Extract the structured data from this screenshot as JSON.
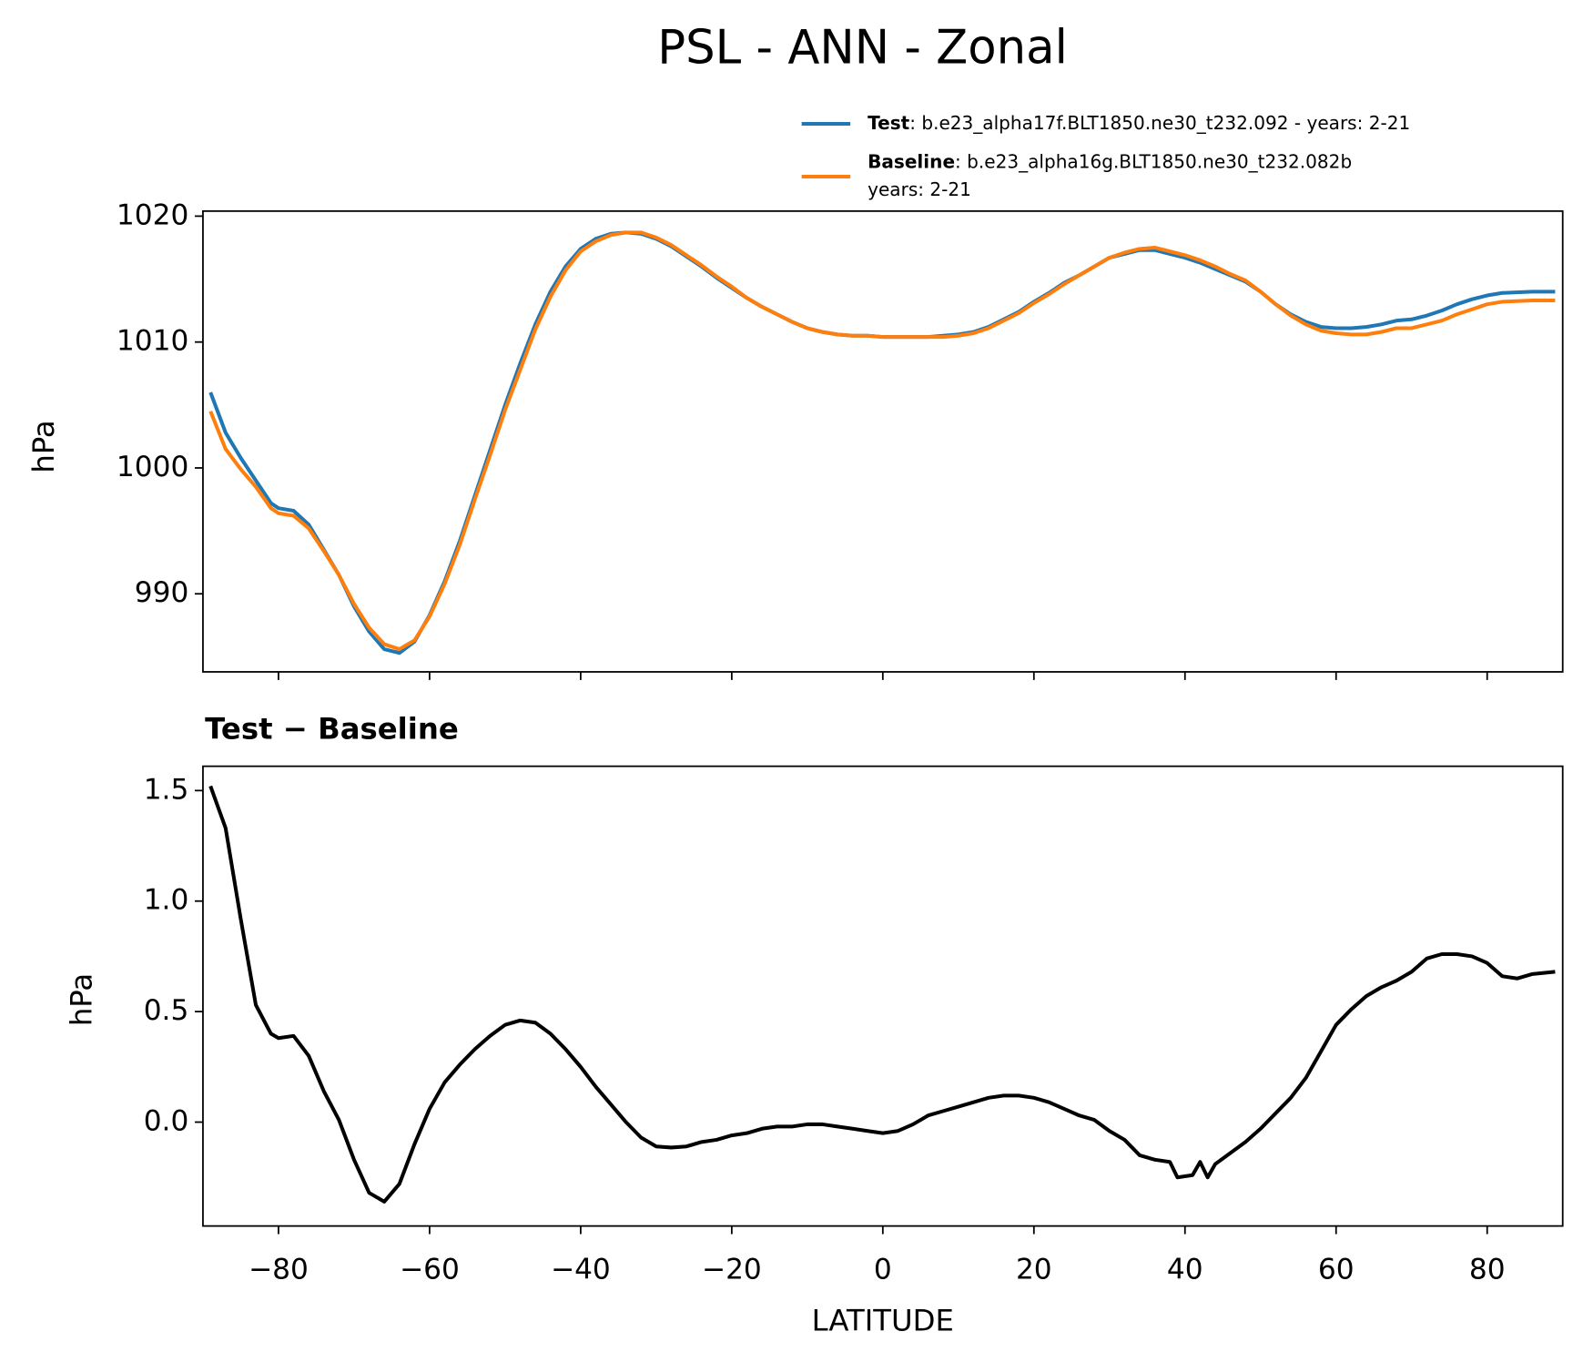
{
  "chart_data": [
    {
      "type": "line",
      "title": "PSL - ANN - Zonal",
      "ylabel": "hPa",
      "x": [
        -89,
        -87,
        -85,
        -83,
        -81,
        -80,
        -78,
        -76,
        -74,
        -72,
        -70,
        -68,
        -66,
        -64,
        -62,
        -60,
        -58,
        -56,
        -54,
        -52,
        -50,
        -48,
        -46,
        -44,
        -42,
        -40,
        -38,
        -36,
        -34,
        -32,
        -30,
        -28,
        -26,
        -24,
        -22,
        -20,
        -18,
        -16,
        -14,
        -12,
        -10,
        -8,
        -6,
        -4,
        -2,
        0,
        2,
        4,
        6,
        8,
        10,
        12,
        14,
        16,
        18,
        20,
        22,
        24,
        26,
        28,
        30,
        32,
        34,
        36,
        38,
        40,
        42,
        44,
        46,
        48,
        50,
        52,
        54,
        56,
        58,
        60,
        62,
        64,
        66,
        68,
        70,
        72,
        74,
        76,
        78,
        80,
        82,
        86,
        89
      ],
      "series": [
        {
          "name": "Test",
          "description": [
            ": b.e23_alpha17f.BLT1850.ne30_t232.092 - years: 2-21"
          ],
          "color": "#1f77b4",
          "values": [
            1006.0,
            1002.8,
            1000.8,
            999.0,
            997.2,
            996.8,
            996.6,
            995.5,
            993.5,
            991.5,
            989.0,
            987.0,
            985.6,
            985.3,
            986.2,
            988.3,
            991.0,
            994.2,
            997.8,
            1001.4,
            1005.0,
            1008.3,
            1011.4,
            1014.0,
            1016.0,
            1017.4,
            1018.2,
            1018.6,
            1018.7,
            1018.6,
            1018.2,
            1017.6,
            1016.8,
            1016.0,
            1015.1,
            1014.3,
            1013.5,
            1012.8,
            1012.2,
            1011.6,
            1011.1,
            1010.8,
            1010.6,
            1010.5,
            1010.5,
            1010.4,
            1010.4,
            1010.4,
            1010.4,
            1010.5,
            1010.6,
            1010.8,
            1011.2,
            1011.8,
            1012.4,
            1013.2,
            1013.9,
            1014.7,
            1015.3,
            1016.0,
            1016.7,
            1017.0,
            1017.3,
            1017.3,
            1017.0,
            1016.7,
            1016.3,
            1015.8,
            1015.3,
            1014.8,
            1014.0,
            1013.0,
            1012.2,
            1011.6,
            1011.2,
            1011.1,
            1011.1,
            1011.2,
            1011.4,
            1011.7,
            1011.8,
            1012.1,
            1012.5,
            1013.0,
            1013.4,
            1013.7,
            1013.9,
            1014.0,
            1014.0
          ]
        },
        {
          "name": "Baseline",
          "description": [
            ": b.e23_alpha16g.BLT1850.ne30_t232.082b",
            "years: 2-21"
          ],
          "color": "#ff7f0e",
          "values": [
            1004.5,
            1001.5,
            999.9,
            998.5,
            996.8,
            996.4,
            996.2,
            995.2,
            993.4,
            991.5,
            989.2,
            987.3,
            986.0,
            985.6,
            986.3,
            988.2,
            990.8,
            993.9,
            997.5,
            1001.0,
            1004.6,
            1007.8,
            1011.0,
            1013.6,
            1015.7,
            1017.2,
            1018.0,
            1018.5,
            1018.7,
            1018.7,
            1018.3,
            1017.7,
            1016.9,
            1016.1,
            1015.2,
            1014.4,
            1013.5,
            1012.8,
            1012.2,
            1011.6,
            1011.1,
            1010.8,
            1010.6,
            1010.5,
            1010.5,
            1010.4,
            1010.4,
            1010.4,
            1010.4,
            1010.4,
            1010.5,
            1010.7,
            1011.1,
            1011.7,
            1012.3,
            1013.1,
            1013.8,
            1014.6,
            1015.3,
            1016.0,
            1016.7,
            1017.1,
            1017.4,
            1017.5,
            1017.2,
            1016.9,
            1016.5,
            1016.0,
            1015.4,
            1014.9,
            1014.0,
            1013.0,
            1012.1,
            1011.4,
            1010.9,
            1010.7,
            1010.6,
            1010.6,
            1010.8,
            1011.1,
            1011.1,
            1011.4,
            1011.7,
            1012.2,
            1012.6,
            1013.0,
            1013.2,
            1013.3,
            1013.3
          ]
        }
      ],
      "xlim": [
        -90,
        90
      ],
      "xticks": [
        -80,
        -60,
        -40,
        -20,
        0,
        20,
        40,
        60,
        80
      ],
      "ylim": [
        983.8,
        1020.4
      ],
      "yticks": [
        990,
        1000,
        1010,
        1020
      ]
    },
    {
      "type": "line",
      "title": "Test − Baseline",
      "xlabel": "LATITUDE",
      "ylabel": "hPa",
      "x": [
        -89,
        -87,
        -85,
        -83,
        -81,
        -80,
        -78,
        -76,
        -74,
        -72,
        -70,
        -68,
        -66,
        -64,
        -62,
        -60,
        -58,
        -56,
        -54,
        -52,
        -50,
        -48,
        -46,
        -44,
        -42,
        -40,
        -38,
        -36,
        -34,
        -32,
        -30,
        -28,
        -26,
        -24,
        -22,
        -20,
        -18,
        -16,
        -14,
        -12,
        -10,
        -8,
        -6,
        -4,
        -2,
        0,
        2,
        4,
        6,
        8,
        10,
        12,
        14,
        16,
        18,
        20,
        22,
        24,
        26,
        28,
        30,
        32,
        34,
        36,
        38,
        39,
        41,
        42,
        43,
        44,
        46,
        48,
        50,
        52,
        54,
        56,
        58,
        60,
        62,
        64,
        66,
        68,
        70,
        72,
        74,
        76,
        78,
        80,
        82,
        84,
        86,
        89
      ],
      "series": [
        {
          "color": "#000000",
          "values": [
            1.52,
            1.33,
            0.92,
            0.53,
            0.4,
            0.38,
            0.39,
            0.3,
            0.14,
            0.01,
            -0.17,
            -0.32,
            -0.36,
            -0.28,
            -0.1,
            0.06,
            0.18,
            0.26,
            0.33,
            0.39,
            0.44,
            0.46,
            0.45,
            0.4,
            0.33,
            0.25,
            0.16,
            0.08,
            0.0,
            -0.07,
            -0.11,
            -0.115,
            -0.11,
            -0.09,
            -0.08,
            -0.06,
            -0.05,
            -0.03,
            -0.02,
            -0.02,
            -0.01,
            -0.01,
            -0.02,
            -0.03,
            -0.04,
            -0.05,
            -0.04,
            -0.01,
            0.03,
            0.05,
            0.07,
            0.09,
            0.11,
            0.12,
            0.12,
            0.11,
            0.09,
            0.06,
            0.03,
            0.01,
            -0.04,
            -0.08,
            -0.15,
            -0.17,
            -0.18,
            -0.25,
            -0.24,
            -0.18,
            -0.25,
            -0.19,
            -0.14,
            -0.09,
            -0.03,
            0.04,
            0.11,
            0.2,
            0.32,
            0.44,
            0.51,
            0.57,
            0.61,
            0.64,
            0.68,
            0.74,
            0.76,
            0.76,
            0.75,
            0.72,
            0.66,
            0.65,
            0.67,
            0.68
          ]
        }
      ],
      "xlim": [
        -90,
        90
      ],
      "xticks": [
        {
          "value": -80,
          "label": "−80"
        },
        {
          "value": -60,
          "label": "−60"
        },
        {
          "value": -40,
          "label": "−40"
        },
        {
          "value": -20,
          "label": "−20"
        },
        0,
        20,
        40,
        60,
        80
      ],
      "ylim": [
        -0.47,
        1.61
      ],
      "yticks": [
        {
          "value": 0,
          "label": "0.0"
        },
        0.5,
        {
          "value": 1,
          "label": "1.0"
        },
        1.5
      ]
    }
  ]
}
